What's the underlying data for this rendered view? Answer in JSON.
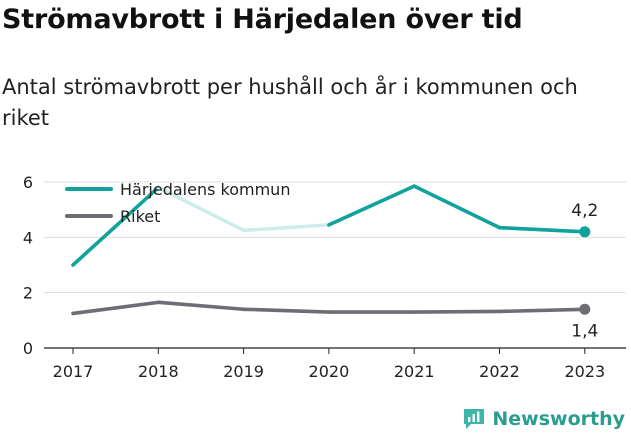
{
  "title": "Strömavbrott i Härjedalen över tid",
  "subtitle": "Antal strömavbrott per hushåll och år i kommunen och riket",
  "brand": {
    "name": "Newsworthy",
    "icon": "newsworthy-logo-icon"
  },
  "colors": {
    "primary": "#10a39b",
    "faded": "#cdecea",
    "secondary": "#6d6d74",
    "grid": "#dddddd"
  },
  "chart_data": {
    "type": "line",
    "x": [
      "2017",
      "2018",
      "2019",
      "2020",
      "2021",
      "2022",
      "2023"
    ],
    "ylim": [
      0,
      6
    ],
    "yticks": [
      "0",
      "2",
      "4",
      "6"
    ],
    "grid": true,
    "legend_position": "top-left",
    "series": [
      {
        "name": "Härjedalens kommun",
        "values": [
          3.0,
          5.8,
          4.25,
          4.45,
          5.85,
          4.35,
          4.2
        ],
        "faded_x": [
          "2018",
          "2019",
          "2020"
        ]
      },
      {
        "name": "Riket",
        "values": [
          1.25,
          1.65,
          1.4,
          1.3,
          1.3,
          1.32,
          1.4
        ]
      }
    ],
    "annotations": [
      {
        "series": "Härjedalens kommun",
        "x": "2023",
        "label": "4,2",
        "placement": "above"
      },
      {
        "series": "Riket",
        "x": "2023",
        "label": "1,4",
        "placement": "below"
      }
    ]
  }
}
